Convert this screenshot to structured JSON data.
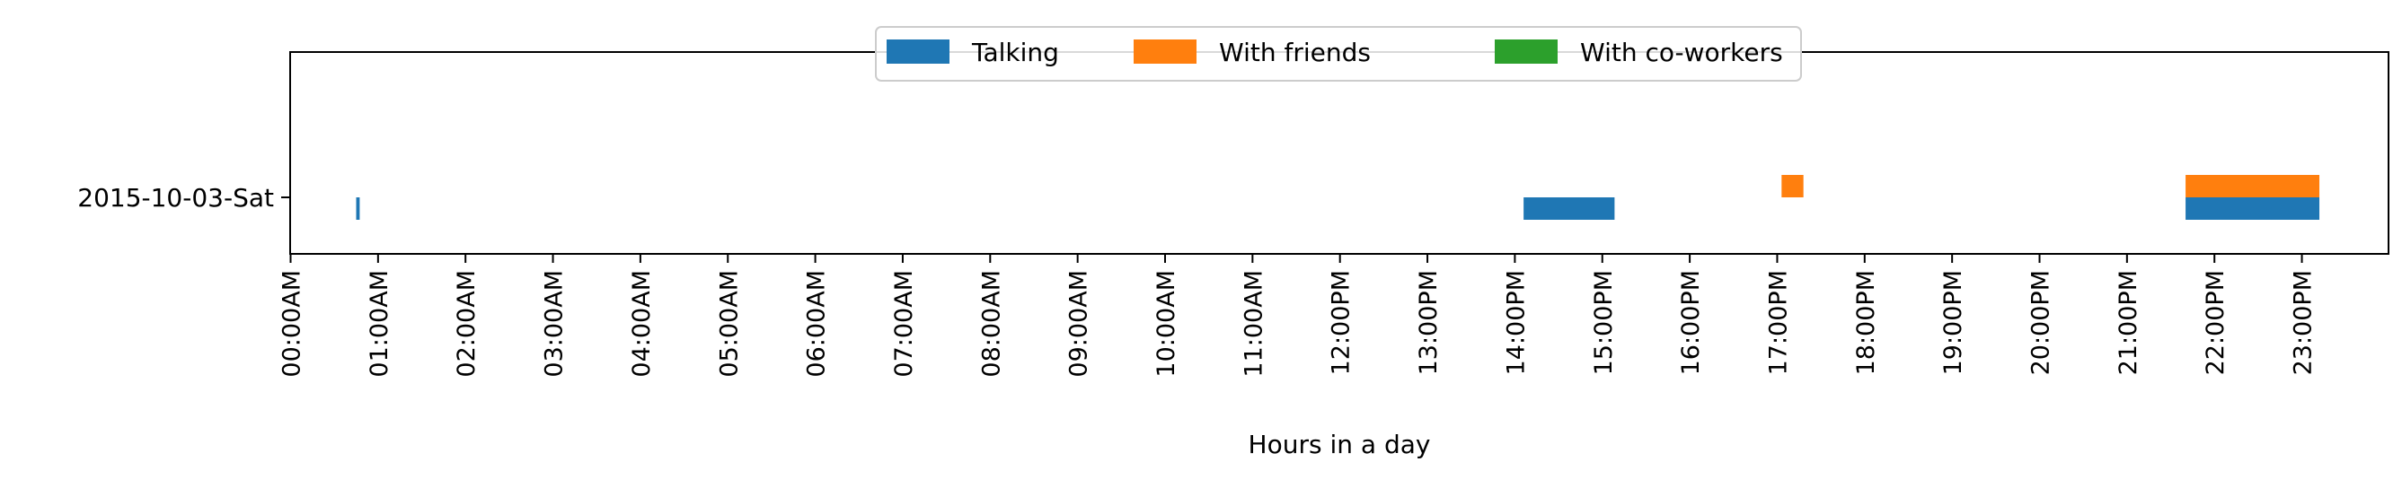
{
  "chart_data": {
    "type": "bar",
    "orientation": "horizontal-timeline",
    "title": "",
    "xlabel": "Hours in a day",
    "ylabel": "",
    "xlim": [
      0,
      24
    ],
    "categories": [
      "2015-10-03-Sat"
    ],
    "x_ticks": [
      "00:00AM",
      "01:00AM",
      "02:00AM",
      "03:00AM",
      "04:00AM",
      "05:00AM",
      "06:00AM",
      "07:00AM",
      "08:00AM",
      "09:00AM",
      "10:00AM",
      "11:00AM",
      "12:00PM",
      "13:00PM",
      "14:00PM",
      "15:00PM",
      "16:00PM",
      "17:00PM",
      "18:00PM",
      "19:00PM",
      "20:00PM",
      "21:00PM",
      "22:00PM",
      "23:00PM"
    ],
    "legend_position": "top-center",
    "grid": false,
    "series": [
      {
        "name": "Talking",
        "color": "#1f77b4",
        "intervals": [
          {
            "category": "2015-10-03-Sat",
            "start": 0.75,
            "end": 0.79
          },
          {
            "category": "2015-10-03-Sat",
            "start": 14.1,
            "end": 15.14
          },
          {
            "category": "2015-10-03-Sat",
            "start": 21.67,
            "end": 23.2
          }
        ]
      },
      {
        "name": "With friends",
        "color": "#ff7f0e",
        "intervals": [
          {
            "category": "2015-10-03-Sat",
            "start": 17.05,
            "end": 17.3
          },
          {
            "category": "2015-10-03-Sat",
            "start": 21.67,
            "end": 23.2
          }
        ]
      },
      {
        "name": "With co-workers",
        "color": "#2ca02c",
        "intervals": []
      }
    ]
  }
}
